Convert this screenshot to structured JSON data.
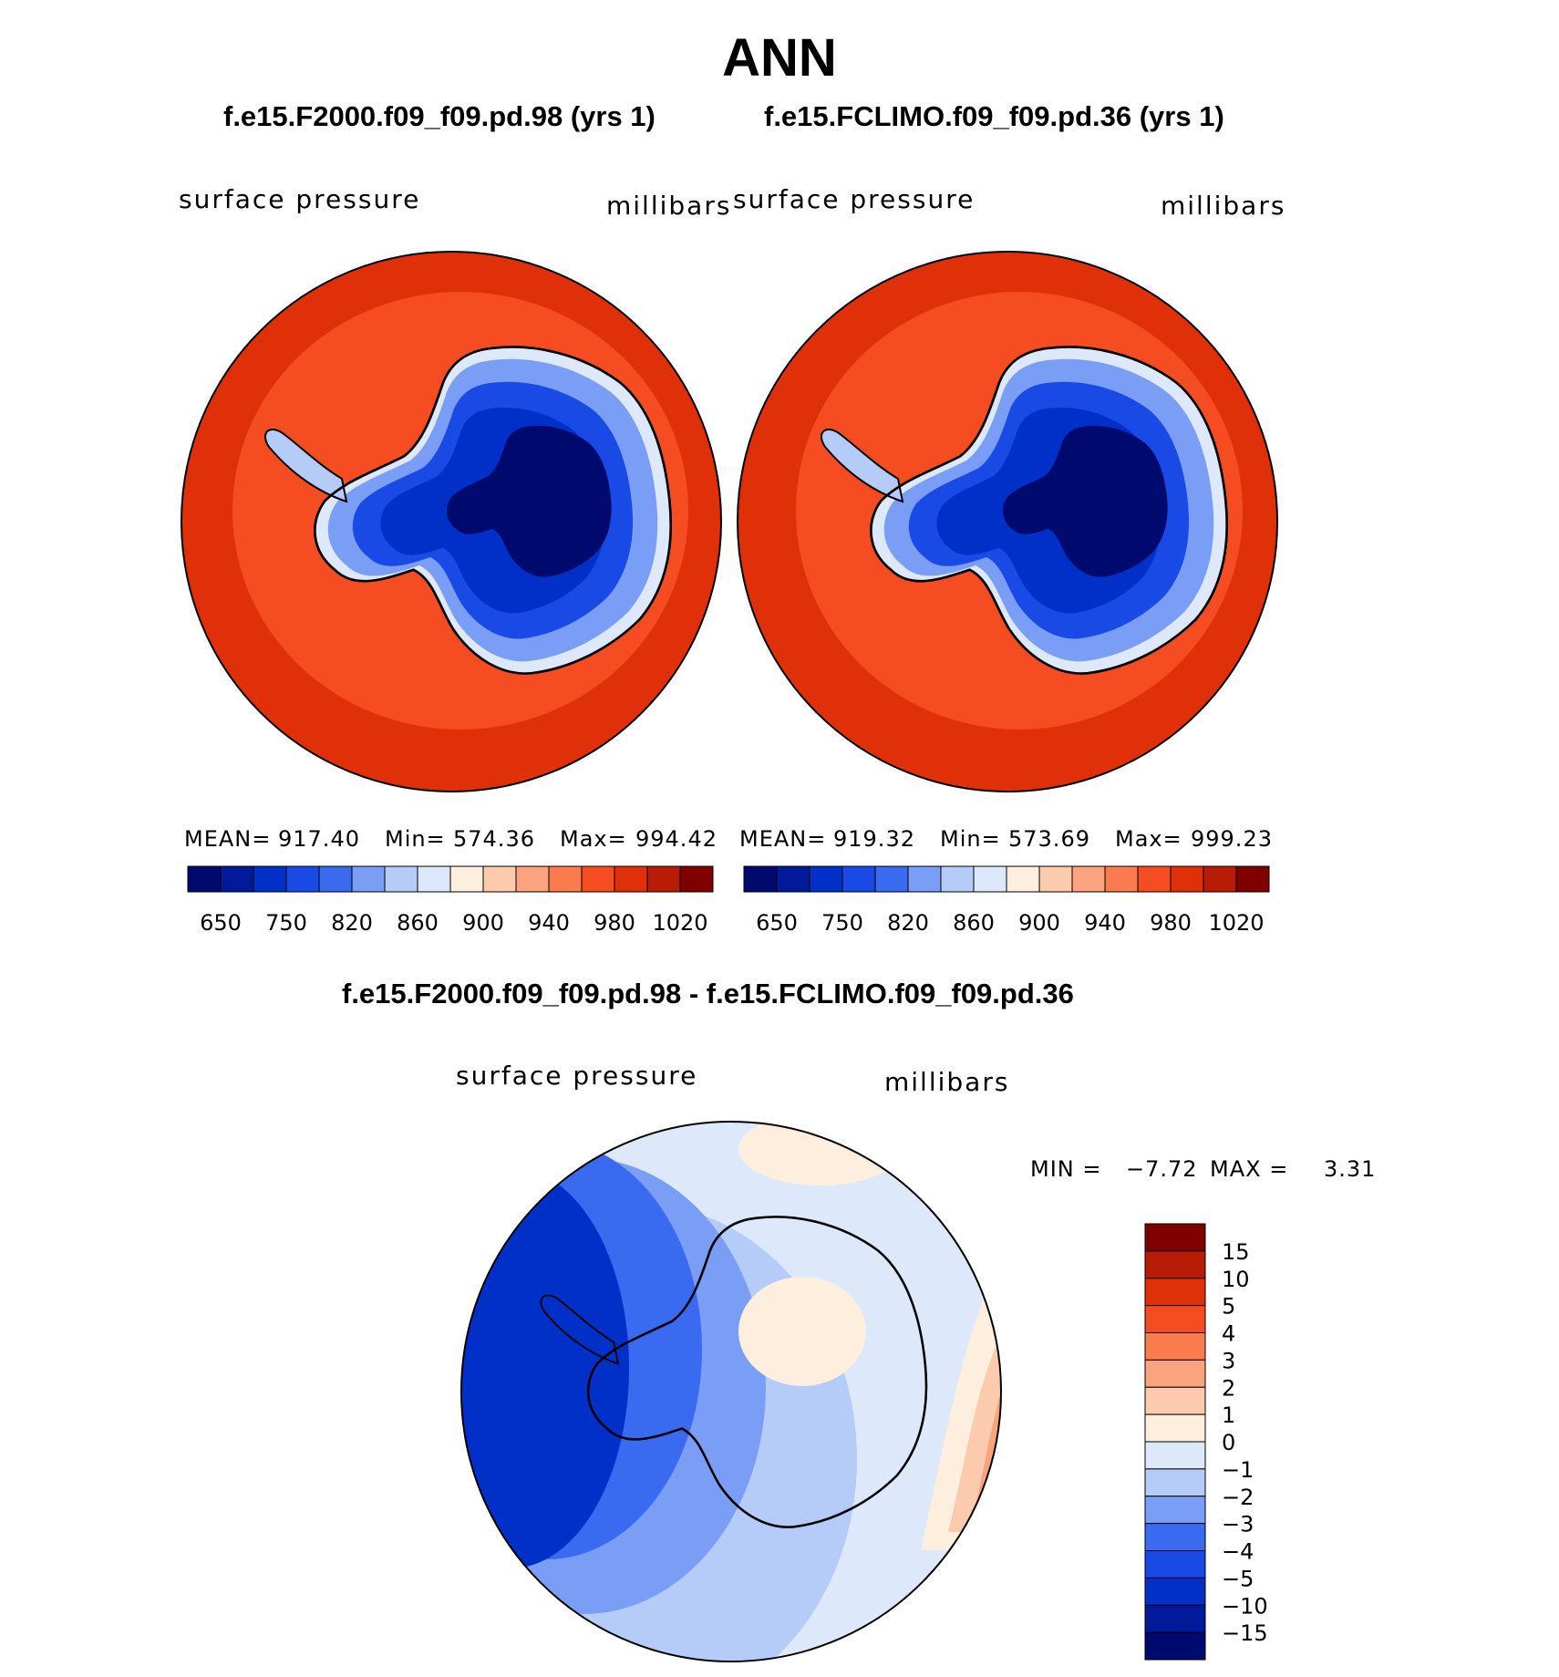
{
  "page_title": "ANN",
  "panels": [
    {
      "case": "f.e15.F2000.f09_f09.pd.98 (yrs 1)",
      "field": "surface pressure",
      "units": "millibars",
      "mean_label": "MEAN=",
      "mean": "917.40",
      "min_label": "Min=",
      "min": "574.36",
      "max_label": "Max=",
      "max": "994.42"
    },
    {
      "case": "f.e15.FCLIMO.f09_f09.pd.36 (yrs 1)",
      "field": "surface pressure",
      "units": "millibars",
      "mean_label": "MEAN=",
      "mean": "919.32",
      "min_label": "Min=",
      "min": "573.69",
      "max_label": "Max=",
      "max": "999.23"
    }
  ],
  "abs_colorbar": {
    "colors": [
      "#000a6e",
      "#001a9a",
      "#0030c8",
      "#1a4ae6",
      "#3a6af0",
      "#7a9ef5",
      "#b4ccf7",
      "#dde9fb",
      "#fdeede",
      "#fccaad",
      "#fba37e",
      "#fa7b4e",
      "#f54c22",
      "#e0300a",
      "#b81c06",
      "#800000"
    ],
    "tick_labels": [
      "650",
      "750",
      "820",
      "860",
      "900",
      "940",
      "980",
      "1020"
    ]
  },
  "diff_panel": {
    "title": "f.e15.F2000.f09_f09.pd.98 - f.e15.FCLIMO.f09_f09.pd.36",
    "field": "surface pressure",
    "units": "millibars",
    "min_label": "MIN =",
    "min": "−7.72",
    "max_label": "MAX =",
    "max": "3.31"
  },
  "diff_colorbar": {
    "colors": [
      "#800000",
      "#b81c06",
      "#e0300a",
      "#f54c22",
      "#fa7b4e",
      "#fba37e",
      "#fccaad",
      "#fdeede",
      "#dde9fb",
      "#b4ccf7",
      "#7a9ef5",
      "#3a6af0",
      "#1a4ae6",
      "#0030c8",
      "#001a9a",
      "#000a6e"
    ],
    "tick_labels": [
      "15",
      "10",
      "5",
      "4",
      "3",
      "2",
      "1",
      "0",
      "−1",
      "−2",
      "−3",
      "−4",
      "−5",
      "−10",
      "−15"
    ]
  },
  "map_colors": {
    "ocean_outer": "#e0300a",
    "ocean_inner": "#f54c22",
    "ice_edge": "#7a9ef5",
    "ice_mid": "#1a4ae6",
    "ice_core": "#000a6e",
    "diff_base": "#dde9fb"
  }
}
